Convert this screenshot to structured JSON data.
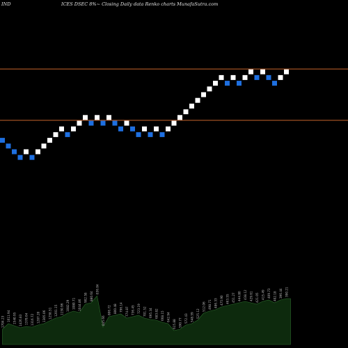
{
  "header": {
    "ticker": "IND",
    "subtitle": "ICES DSEC 8%~ Closing Daily data Renko charts MunafaSutra.com"
  },
  "colors": {
    "background": "#000000",
    "up_brick": "#ffffff",
    "down_brick": "#1e6fe0",
    "reference_line": "#c8642d",
    "volume_fill": "#0d2a0d",
    "volume_outline": "#2d6a2d",
    "volume_label": "#bbbbbb"
  },
  "chart_data": {
    "type": "renko",
    "y_scale": "price",
    "bricks": [
      {
        "dir": "down",
        "level": 22
      },
      {
        "dir": "down",
        "level": 21
      },
      {
        "dir": "down",
        "level": 20
      },
      {
        "dir": "down",
        "level": 19
      },
      {
        "dir": "up",
        "level": 20
      },
      {
        "dir": "down",
        "level": 19
      },
      {
        "dir": "up",
        "level": 20
      },
      {
        "dir": "up",
        "level": 21
      },
      {
        "dir": "up",
        "level": 22
      },
      {
        "dir": "up",
        "level": 23
      },
      {
        "dir": "up",
        "level": 24
      },
      {
        "dir": "down",
        "level": 23
      },
      {
        "dir": "up",
        "level": 24
      },
      {
        "dir": "up",
        "level": 25
      },
      {
        "dir": "up",
        "level": 26
      },
      {
        "dir": "down",
        "level": 25
      },
      {
        "dir": "up",
        "level": 26
      },
      {
        "dir": "down",
        "level": 25
      },
      {
        "dir": "up",
        "level": 26
      },
      {
        "dir": "down",
        "level": 25
      },
      {
        "dir": "down",
        "level": 24
      },
      {
        "dir": "up",
        "level": 25
      },
      {
        "dir": "down",
        "level": 24
      },
      {
        "dir": "down",
        "level": 23
      },
      {
        "dir": "up",
        "level": 24
      },
      {
        "dir": "down",
        "level": 23
      },
      {
        "dir": "up",
        "level": 24
      },
      {
        "dir": "down",
        "level": 23
      },
      {
        "dir": "up",
        "level": 24
      },
      {
        "dir": "up",
        "level": 25
      },
      {
        "dir": "up",
        "level": 26
      },
      {
        "dir": "up",
        "level": 27
      },
      {
        "dir": "up",
        "level": 28
      },
      {
        "dir": "up",
        "level": 29
      },
      {
        "dir": "up",
        "level": 30
      },
      {
        "dir": "up",
        "level": 31
      },
      {
        "dir": "up",
        "level": 32
      },
      {
        "dir": "up",
        "level": 33
      },
      {
        "dir": "down",
        "level": 32
      },
      {
        "dir": "up",
        "level": 33
      },
      {
        "dir": "down",
        "level": 32
      },
      {
        "dir": "up",
        "level": 33
      },
      {
        "dir": "up",
        "level": 34
      },
      {
        "dir": "down",
        "level": 33
      },
      {
        "dir": "up",
        "level": 34
      },
      {
        "dir": "down",
        "level": 33
      },
      {
        "dir": "down",
        "level": 32
      },
      {
        "dir": "up",
        "level": 33
      },
      {
        "dir": "up",
        "level": 34
      }
    ],
    "reference_lines": [
      34.5,
      25.5
    ],
    "volume": [
      {
        "label": "1704.23",
        "value": 22
      },
      {
        "label": "1611.94",
        "value": 30
      },
      {
        "label": "1540.95",
        "value": 27
      },
      {
        "label": "1426.83",
        "value": 24
      },
      {
        "label": "1378.64",
        "value": 26
      },
      {
        "label": "1316.72",
        "value": 25
      },
      {
        "label": "1287.20",
        "value": 28
      },
      {
        "label": "1305.06",
        "value": 30
      },
      {
        "label": "1258.51",
        "value": 34
      },
      {
        "label": "1201.15",
        "value": 38
      },
      {
        "label": "1150.96",
        "value": 40
      },
      {
        "label": "1082.29",
        "value": 45
      },
      {
        "label": "1080.71",
        "value": 48
      },
      {
        "label": "1044.86",
        "value": 46
      },
      {
        "label": "902.58",
        "value": 58
      },
      {
        "label": "880.64",
        "value": 60
      },
      {
        "label": "836.04",
        "value": 70
      },
      {
        "label": "845.66",
        "value": 25
      },
      {
        "label": "806.72",
        "value": 40
      },
      {
        "label": "800.48",
        "value": 42
      },
      {
        "label": "796.14",
        "value": 44
      },
      {
        "label": "774.87",
        "value": 38
      },
      {
        "label": "736.45",
        "value": 40
      },
      {
        "label": "723.19",
        "value": 42
      },
      {
        "label": "701.52",
        "value": 38
      },
      {
        "label": "695.34",
        "value": 36
      },
      {
        "label": "683.82",
        "value": 35
      },
      {
        "label": "668.15",
        "value": 32
      },
      {
        "label": "642.94",
        "value": 30
      },
      {
        "label": "615.88",
        "value": 20
      },
      {
        "label": "590.77",
        "value": 22
      },
      {
        "label": "572.43",
        "value": 28
      },
      {
        "label": "548.59",
        "value": 30
      },
      {
        "label": "525.12",
        "value": 35
      },
      {
        "label": "512.06",
        "value": 45
      },
      {
        "label": "498.71",
        "value": 48
      },
      {
        "label": "486.33",
        "value": 50
      },
      {
        "label": "475.90",
        "value": 54
      },
      {
        "label": "463.55",
        "value": 56
      },
      {
        "label": "451.27",
        "value": 58
      },
      {
        "label": "444.80",
        "value": 60
      },
      {
        "label": "438.12",
        "value": 62
      },
      {
        "label": "429.61",
        "value": 60
      },
      {
        "label": "421.05",
        "value": 58
      },
      {
        "label": "415.49",
        "value": 62
      },
      {
        "label": "409.73",
        "value": 64
      },
      {
        "label": "402.18",
        "value": 60
      },
      {
        "label": "396.44",
        "value": 64
      },
      {
        "label": "390.21",
        "value": 66
      }
    ]
  }
}
